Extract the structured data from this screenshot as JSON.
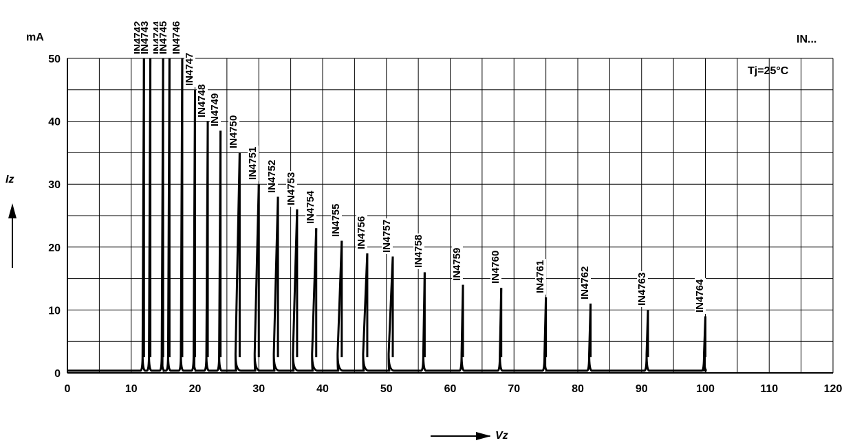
{
  "chart_data": {
    "type": "line",
    "y_unit": "mA",
    "xlabel": "Vz",
    "ylabel": "Iz",
    "corner_label": "IN...",
    "condition_label": "Tj=25°C",
    "xlim": [
      0,
      120
    ],
    "ylim": [
      0,
      50
    ],
    "x_ticks": [
      "0",
      "10",
      "20",
      "30",
      "40",
      "50",
      "60",
      "70",
      "80",
      "90",
      "100",
      "110",
      "120"
    ],
    "y_ticks": [
      "0",
      "10",
      "20",
      "30",
      "40",
      "50"
    ],
    "grid": true,
    "series": [
      {
        "name": "IN4742",
        "vz": 12,
        "iz_max": 50
      },
      {
        "name": "IN4743",
        "vz": 13,
        "iz_max": 50
      },
      {
        "name": "IN4744",
        "vz": 15,
        "iz_max": 50
      },
      {
        "name": "IN4745",
        "vz": 16,
        "iz_max": 50
      },
      {
        "name": "IN4746",
        "vz": 18,
        "iz_max": 50
      },
      {
        "name": "IN4747",
        "vz": 20,
        "iz_max": 45
      },
      {
        "name": "IN4748",
        "vz": 22,
        "iz_max": 40
      },
      {
        "name": "IN4749",
        "vz": 24,
        "iz_max": 38.5
      },
      {
        "name": "IN4750",
        "vz": 27,
        "iz_max": 35
      },
      {
        "name": "IN4751",
        "vz": 30,
        "iz_max": 30
      },
      {
        "name": "IN4752",
        "vz": 33,
        "iz_max": 28
      },
      {
        "name": "IN4753",
        "vz": 36,
        "iz_max": 26
      },
      {
        "name": "IN4754",
        "vz": 39,
        "iz_max": 23
      },
      {
        "name": "IN4755",
        "vz": 43,
        "iz_max": 21
      },
      {
        "name": "IN4756",
        "vz": 47,
        "iz_max": 19
      },
      {
        "name": "IN4757",
        "vz": 51,
        "iz_max": 18.5
      },
      {
        "name": "IN4758",
        "vz": 56,
        "iz_max": 16
      },
      {
        "name": "IN4759",
        "vz": 62,
        "iz_max": 14
      },
      {
        "name": "IN4760",
        "vz": 68,
        "iz_max": 13.5
      },
      {
        "name": "IN4761",
        "vz": 75,
        "iz_max": 12
      },
      {
        "name": "IN4762",
        "vz": 82,
        "iz_max": 11
      },
      {
        "name": "IN4763",
        "vz": 91,
        "iz_max": 10
      },
      {
        "name": "IN4764",
        "vz": 100,
        "iz_max": 9
      }
    ]
  }
}
